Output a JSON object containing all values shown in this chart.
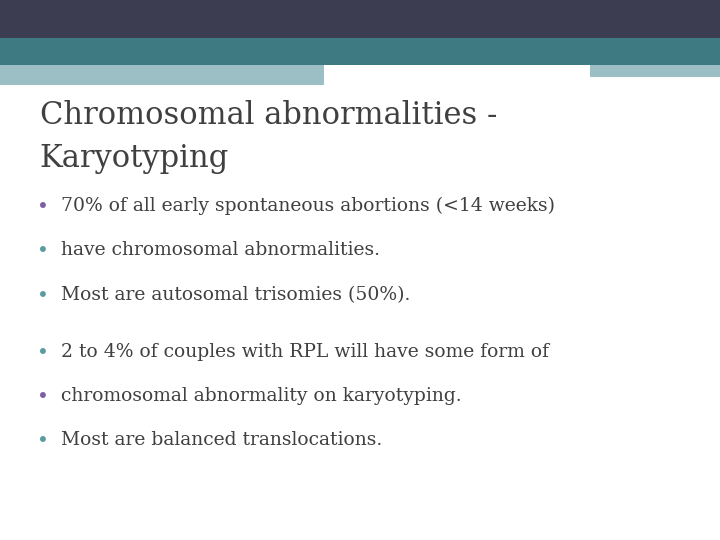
{
  "title_line1": "Chromosomal abnormalities -",
  "title_line2": "Karyotyping",
  "title_color": "#404040",
  "title_fontsize": 22,
  "background_color": "#ffffff",
  "bullet_color_1": "#7B5EA7",
  "bullet_color_2": "#5B9AA0",
  "bullet_fontsize": 13.5,
  "bullets_group1": [
    "70% of all early spontaneous abortions (<14 weeks)",
    "have chromosomal abnormalities.",
    "Most are autosomal trisomies (50%)."
  ],
  "bullets_group2": [
    "2 to 4% of couples with RPL will have some form of",
    "chromosomal abnormality on karyotyping.",
    "Most are balanced translocations."
  ],
  "bullet_colors_g1": [
    "#7B5EA7",
    "#5B9AA0",
    "#5B9AA0"
  ],
  "bullet_colors_g2": [
    "#5B9AA0",
    "#7B5EA7",
    "#5B9AA0"
  ],
  "dark_bar_color": "#3d3d52",
  "teal_bar_color": "#3d7a82",
  "light_teal_color": "#9bbfc5",
  "white_bar_color": "#ffffff"
}
